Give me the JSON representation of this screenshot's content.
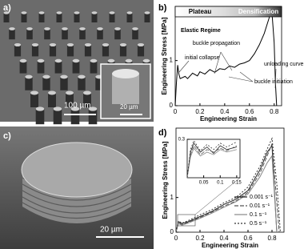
{
  "panels": {
    "a": {
      "label": "a)",
      "scale_bar": "100 µm",
      "inset_scale_bar": "20 µm"
    },
    "c": {
      "label": "c)",
      "scale_bar": "20 µm"
    }
  },
  "chart_data": [
    {
      "type": "line",
      "panel_label": "b)",
      "xlabel": "Engineering Strain",
      "ylabel": "Engineering Stress [MPa]",
      "xlim": [
        0,
        0.86
      ],
      "ylim": [
        0,
        2.2
      ],
      "xticks": [
        0,
        0.2,
        0.4,
        0.6,
        0.8
      ],
      "yticks": [
        0,
        1
      ],
      "band_labels": [
        "Plateau",
        "Densification"
      ],
      "annotations": [
        "Elastic Regime",
        "initial collapse",
        "buckle propagation",
        "buckle initiation",
        "unloading curve"
      ],
      "series": [
        {
          "color": "#000000",
          "x": [
            0,
            0.01,
            0.02,
            0.03,
            0.04,
            0.08,
            0.1,
            0.14,
            0.18,
            0.2,
            0.24,
            0.28,
            0.32,
            0.36,
            0.4,
            0.44,
            0.48,
            0.52,
            0.56,
            0.6,
            0.64,
            0.68,
            0.72,
            0.76,
            0.78,
            0.8,
            0.81,
            0.82
          ],
          "values": [
            0,
            0.5,
            0.9,
            0.7,
            0.6,
            0.65,
            0.6,
            0.72,
            0.66,
            0.75,
            0.7,
            0.8,
            0.74,
            0.82,
            0.8,
            0.88,
            0.85,
            0.92,
            0.95,
            1.0,
            1.15,
            1.35,
            1.6,
            1.95,
            2.15,
            1.4,
            0.5,
            0
          ]
        }
      ]
    },
    {
      "type": "line",
      "panel_label": "d)",
      "xlabel": "Engineering Strain",
      "ylabel": "Engineering Stress [MPa]",
      "xlim": [
        0,
        0.9
      ],
      "ylim": [
        0,
        3
      ],
      "xticks": [
        0,
        0.2,
        0.4,
        0.6,
        0.8
      ],
      "yticks": [
        0,
        1
      ],
      "legend": "lower right",
      "series": [
        {
          "name": "0.001 s⁻¹",
          "color": "#222222",
          "dash": "none",
          "x": [
            0,
            0.02,
            0.05,
            0.1,
            0.2,
            0.3,
            0.4,
            0.5,
            0.6,
            0.7,
            0.76,
            0.8,
            0.82,
            0.84
          ],
          "values": [
            0,
            0.3,
            0.25,
            0.3,
            0.45,
            0.6,
            0.8,
            0.95,
            1.2,
            1.8,
            2.3,
            2.5,
            1.2,
            0
          ]
        },
        {
          "name": "0.01 s⁻¹",
          "color": "#555555",
          "dash": "5,2",
          "x": [
            0,
            0.02,
            0.05,
            0.1,
            0.2,
            0.3,
            0.4,
            0.5,
            0.6,
            0.7,
            0.76,
            0.8,
            0.83,
            0.86
          ],
          "values": [
            0,
            0.28,
            0.22,
            0.28,
            0.42,
            0.58,
            0.75,
            0.9,
            1.15,
            1.7,
            2.2,
            2.55,
            1.3,
            0
          ]
        },
        {
          "name": "0.1 s⁻¹",
          "color": "#888888",
          "dash": "none",
          "x": [
            0,
            0.02,
            0.05,
            0.1,
            0.2,
            0.3,
            0.4,
            0.5,
            0.6,
            0.7,
            0.76,
            0.8,
            0.82,
            0.84
          ],
          "values": [
            0,
            0.25,
            0.2,
            0.26,
            0.4,
            0.55,
            0.72,
            0.88,
            1.1,
            1.6,
            2.0,
            2.2,
            1.1,
            0
          ]
        },
        {
          "name": "0.5 s⁻¹",
          "color": "#333333",
          "dash": "2,2",
          "x": [
            0,
            0.02,
            0.05,
            0.1,
            0.2,
            0.3,
            0.4,
            0.5,
            0.6,
            0.7,
            0.76,
            0.8,
            0.84,
            0.87
          ],
          "values": [
            0,
            0.32,
            0.26,
            0.33,
            0.5,
            0.65,
            0.85,
            1.0,
            1.3,
            1.9,
            2.4,
            2.7,
            1.4,
            0
          ]
        }
      ]
    },
    {
      "type": "line",
      "xlim": [
        0,
        0.16
      ],
      "ylim": [
        0,
        0.3
      ],
      "xticks": [
        0.05,
        0.1,
        0.15
      ],
      "yticks": [
        0.3
      ],
      "series": [
        {
          "color": "#222222",
          "dash": "none",
          "x": [
            0,
            0.01,
            0.02,
            0.04,
            0.06,
            0.08,
            0.1,
            0.12,
            0.15
          ],
          "values": [
            0,
            0.2,
            0.27,
            0.2,
            0.24,
            0.19,
            0.25,
            0.22,
            0.24
          ]
        },
        {
          "color": "#555555",
          "dash": "5,2",
          "x": [
            0,
            0.01,
            0.02,
            0.04,
            0.06,
            0.08,
            0.1,
            0.12,
            0.15
          ],
          "values": [
            0,
            0.18,
            0.25,
            0.18,
            0.22,
            0.2,
            0.23,
            0.21,
            0.25
          ]
        },
        {
          "color": "#888888",
          "dash": "none",
          "x": [
            0,
            0.01,
            0.02,
            0.04,
            0.06,
            0.08,
            0.1,
            0.12,
            0.15
          ],
          "values": [
            0,
            0.16,
            0.23,
            0.17,
            0.2,
            0.18,
            0.22,
            0.2,
            0.22
          ]
        },
        {
          "color": "#333333",
          "dash": "2,2",
          "x": [
            0,
            0.01,
            0.02,
            0.04,
            0.06,
            0.08,
            0.1,
            0.12,
            0.15
          ],
          "values": [
            0,
            0.22,
            0.29,
            0.21,
            0.26,
            0.22,
            0.27,
            0.24,
            0.28
          ]
        }
      ]
    }
  ]
}
